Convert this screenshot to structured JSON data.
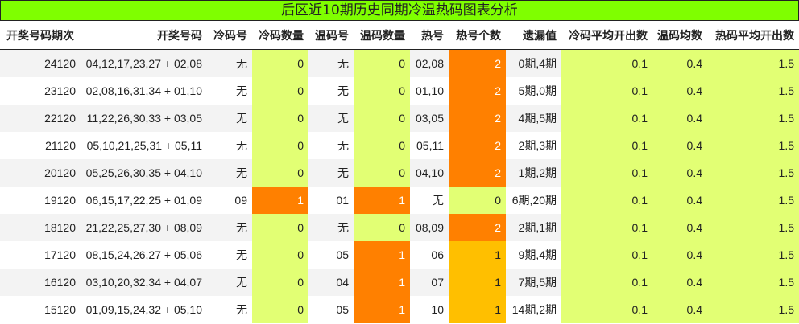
{
  "title": "后区近10期历史同期冷温热码图表分析",
  "colors": {
    "header_bg": "#7fff00",
    "zero": "#e2ff74",
    "two": "#ff8000",
    "one_hot": "#ffbf00",
    "one_coldwarm": "#ff8000"
  },
  "columns": [
    "开奖号码期次",
    "开奖号码",
    "冷码号",
    "冷码数量",
    "温码号",
    "温码数量",
    "热号",
    "热号个数",
    "遗漏值",
    "冷码平均开出数",
    "温码均数",
    "热码平均开出数"
  ],
  "rows": [
    [
      "24120",
      "04,12,17,23,27 + 02,08",
      "无",
      "0",
      "无",
      "0",
      "02,08",
      "2",
      "0期,4期",
      "0.1",
      "0.4",
      "1.5"
    ],
    [
      "23120",
      "02,08,16,31,34 + 01,10",
      "无",
      "0",
      "无",
      "0",
      "01,10",
      "2",
      "5期,0期",
      "0.1",
      "0.4",
      "1.5"
    ],
    [
      "22120",
      "11,22,26,30,33 + 03,05",
      "无",
      "0",
      "无",
      "0",
      "03,05",
      "2",
      "4期,5期",
      "0.1",
      "0.4",
      "1.5"
    ],
    [
      "21120",
      "05,10,21,25,31 + 05,11",
      "无",
      "0",
      "无",
      "0",
      "05,11",
      "2",
      "2期,3期",
      "0.1",
      "0.4",
      "1.5"
    ],
    [
      "20120",
      "05,25,26,30,35 + 04,10",
      "无",
      "0",
      "无",
      "0",
      "04,10",
      "2",
      "1期,2期",
      "0.1",
      "0.4",
      "1.5"
    ],
    [
      "19120",
      "06,15,17,22,25 + 01,09",
      "09",
      "1",
      "01",
      "1",
      "无",
      "0",
      "6期,20期",
      "0.1",
      "0.4",
      "1.5"
    ],
    [
      "18120",
      "21,22,25,27,30 + 08,09",
      "无",
      "0",
      "无",
      "0",
      "08,09",
      "2",
      "2期,1期",
      "0.1",
      "0.4",
      "1.5"
    ],
    [
      "17120",
      "08,15,24,26,27 + 05,06",
      "无",
      "0",
      "05",
      "1",
      "06",
      "1",
      "9期,4期",
      "0.1",
      "0.4",
      "1.5"
    ],
    [
      "16120",
      "03,10,20,32,34 + 04,07",
      "无",
      "0",
      "04",
      "1",
      "07",
      "1",
      "7期,5期",
      "0.1",
      "0.4",
      "1.5"
    ],
    [
      "15120",
      "01,09,15,24,32 + 05,10",
      "无",
      "0",
      "05",
      "1",
      "10",
      "1",
      "14期,2期",
      "0.1",
      "0.4",
      "1.5"
    ]
  ]
}
